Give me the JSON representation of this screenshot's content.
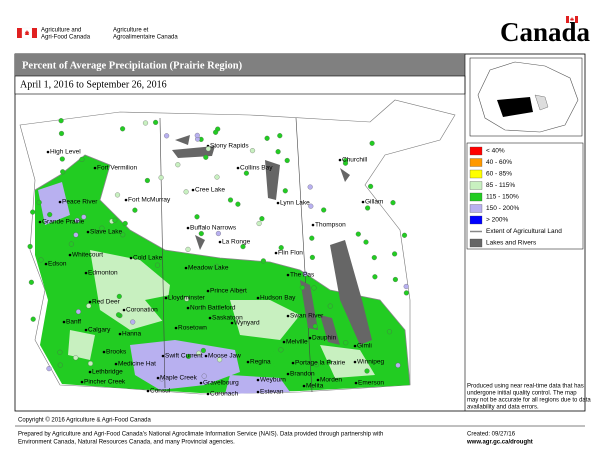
{
  "header": {
    "dept_en": [
      "Agriculture and",
      "Agri-Food Canada"
    ],
    "dept_fr": [
      "Agriculture et",
      "Agroalimentaire Canada"
    ],
    "wordmark": "Canada"
  },
  "title": "Percent of Average Precipitation (Prairie Region)",
  "period": "April 1, 2016 to September 26, 2016",
  "legend": [
    {
      "label": "< 40%",
      "color": "#ff0000"
    },
    {
      "label": "40 - 60%",
      "color": "#ff9900"
    },
    {
      "label": "60 - 85%",
      "color": "#ffff00"
    },
    {
      "label": "85 - 115%",
      "color": "#c8f0c0"
    },
    {
      "label": "115 - 150%",
      "color": "#22cc22"
    },
    {
      "label": "150 - 200%",
      "color": "#b8b0f0"
    },
    {
      "label": "> 200%",
      "color": "#0000ff"
    },
    {
      "label": "Extent of Agricultural Land",
      "color": "#888888"
    },
    {
      "label": "Lakes and Rivers",
      "color": "#666666"
    }
  ],
  "places": [
    "High Level",
    "Fort Vermilion",
    "Peace River",
    "Fort McMurray",
    "Grande Prairie",
    "Slave Lake",
    "Whitecourt",
    "Edson",
    "Edmonton",
    "Cold Lake",
    "Red Deer",
    "Coronation",
    "Calgary",
    "Banff",
    "Hanna",
    "Brooks",
    "Medicine Hat",
    "Lethbridge",
    "Pincher Creek",
    "Stony Rapids",
    "Collins Bay",
    "Cree Lake",
    "Buffalo Narrows",
    "La Ronge",
    "Meadow Lake",
    "Lloydminster",
    "North Battleford",
    "Prince Albert",
    "Saskatoon",
    "Wynyard",
    "Hudson Bay",
    "Rosetown",
    "Swift Current",
    "Moose Jaw",
    "Regina",
    "Melville",
    "Maple Creek",
    "Gravelbourg",
    "Weyburn",
    "Consul",
    "Coronach",
    "Estevan",
    "Churchill",
    "Gillam",
    "Lynn Lake",
    "Thompson",
    "Flin Flon",
    "The Pas",
    "Swan River",
    "Dauphin",
    "Gimli",
    "Portage la Prairie",
    "Winnipeg",
    "Brandon",
    "Morden",
    "Emerson",
    "Melita"
  ],
  "disclaimer": [
    "Produced using near real-time data that has",
    "undergone initial quality control.  The map",
    "may not be accurate for all regions due to data",
    "availability and data errors."
  ],
  "copyright": "Copyright © 2016 Agriculture & Agri-Food Canada",
  "footer": [
    "Prepared by Agriculture and Agri-Food Canada's National Agroclimate Information Service (NAIS).  Data provided through partnership with",
    "Environment Canada, Natural Resources Canada, and many Provincial agencies."
  ],
  "created": "Created: 09/27/16",
  "url": "www.agr.gc.ca/drought"
}
